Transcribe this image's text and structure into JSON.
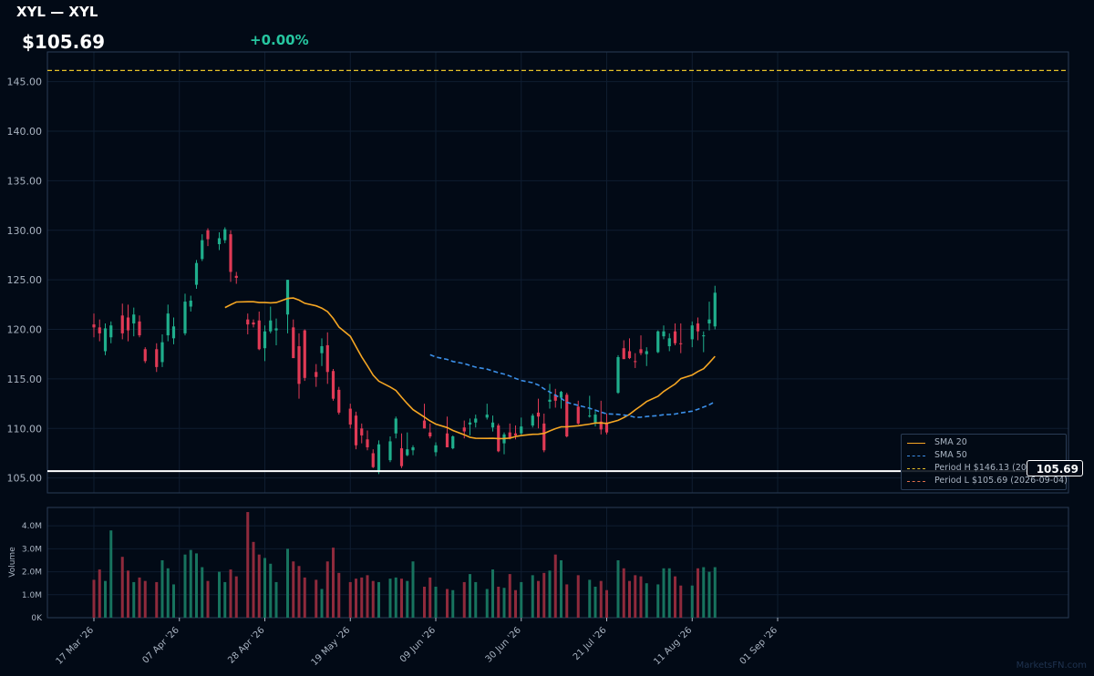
{
  "header": {
    "title": "XYL — XYL",
    "price": "$105.69",
    "change": "+0.00%",
    "change_color": "#26c6a0"
  },
  "watermark": "MarketsFN.com",
  "price_tag": "105.69",
  "colors": {
    "up": "#1fae8c",
    "down": "#e03a55",
    "sma20": "#f5a623",
    "sma50": "#3b8fe8",
    "period_high": "#e6c229",
    "period_low": "#ffffff",
    "grid": "#0f1d30",
    "axis_text": "#a9b4c2"
  },
  "chart_data": {
    "type": "candlestick",
    "title": "XYL — XYL",
    "ylim": [
      103.5,
      148.0
    ],
    "price_ticks": [
      "105.00",
      "110.00",
      "115.00",
      "120.00",
      "125.00",
      "130.00",
      "135.00",
      "140.00",
      "145.00"
    ],
    "volume_ylim": [
      0,
      4800000
    ],
    "volume_label": "Volume",
    "volume_ticks": [
      {
        "value": 0,
        "label": "0K"
      },
      {
        "value": 1000000,
        "label": "1.0M"
      },
      {
        "value": 2000000,
        "label": "2.0M"
      },
      {
        "value": 3000000,
        "label": "3.0M"
      },
      {
        "value": 4000000,
        "label": "4.0M"
      }
    ],
    "x_ticks": [
      {
        "index": 0,
        "label": "17 Mar '26"
      },
      {
        "index": 15,
        "label": "07 Apr '26"
      },
      {
        "index": 30,
        "label": "28 Apr '26"
      },
      {
        "index": 45,
        "label": "19 May '26"
      },
      {
        "index": 60,
        "label": "09 Jun '26"
      },
      {
        "index": 75,
        "label": "30 Jun '26"
      },
      {
        "index": 90,
        "label": "21 Jul '26"
      },
      {
        "index": 105,
        "label": "11 Aug '26"
      },
      {
        "index": 120,
        "label": "01 Sep '26"
      }
    ],
    "candles": [
      [
        120.5,
        121.6,
        119.2,
        120.2,
        1650000
      ],
      [
        120.2,
        121.0,
        118.8,
        119.6,
        2100000
      ],
      [
        117.8,
        120.6,
        117.4,
        120.1,
        1600000
      ],
      [
        119.2,
        120.8,
        118.6,
        120.4,
        3800000
      ],
      null,
      [
        121.4,
        122.6,
        119.0,
        119.6,
        2650000
      ],
      [
        121.2,
        122.5,
        118.8,
        119.9,
        2050000
      ],
      [
        120.6,
        122.2,
        119.3,
        121.5,
        1550000
      ],
      [
        120.8,
        121.4,
        119.2,
        119.4,
        1750000
      ],
      [
        118.0,
        118.2,
        116.6,
        116.8,
        1600000
      ],
      null,
      [
        118.0,
        118.6,
        115.7,
        116.2,
        1550000
      ],
      [
        116.7,
        119.5,
        116.2,
        118.7,
        2500000
      ],
      [
        119.4,
        122.5,
        118.8,
        121.6,
        2150000
      ],
      [
        119.1,
        121.2,
        118.5,
        120.3,
        1450000
      ],
      null,
      [
        119.6,
        123.6,
        119.4,
        122.8,
        2750000
      ],
      [
        122.3,
        123.4,
        121.8,
        122.9,
        2950000
      ],
      [
        124.5,
        127.0,
        124.1,
        126.7,
        2800000
      ],
      [
        127.1,
        129.6,
        126.9,
        129.0,
        2200000
      ],
      [
        130.0,
        130.2,
        128.4,
        129.1,
        1600000
      ],
      null,
      [
        128.6,
        129.8,
        128.0,
        129.2,
        2000000
      ],
      [
        129.0,
        130.3,
        128.7,
        130.1,
        1550000
      ],
      [
        129.6,
        130.0,
        124.8,
        125.8,
        2100000
      ],
      [
        125.4,
        125.8,
        124.6,
        125.2,
        1800000
      ],
      null,
      [
        121.0,
        121.6,
        119.5,
        120.5,
        4600000
      ],
      [
        120.7,
        121.0,
        120.2,
        120.5,
        3300000
      ],
      [
        120.9,
        121.8,
        117.9,
        118.0,
        2750000
      ],
      [
        118.1,
        120.4,
        116.8,
        119.8,
        2600000
      ],
      [
        119.8,
        122.3,
        119.6,
        120.9,
        2350000
      ],
      [
        119.9,
        121.1,
        118.4,
        120.1,
        1550000
      ],
      null,
      [
        121.5,
        125.0,
        119.6,
        125.0,
        3000000
      ],
      [
        120.2,
        121.0,
        117.1,
        117.1,
        2450000
      ],
      [
        118.3,
        119.6,
        113.0,
        114.5,
        2250000
      ],
      [
        119.9,
        120.0,
        114.8,
        115.1,
        1750000
      ],
      null,
      [
        115.7,
        116.5,
        114.2,
        115.2,
        1650000
      ],
      [
        117.6,
        119.1,
        116.3,
        118.3,
        1250000
      ],
      [
        118.4,
        119.7,
        114.5,
        115.7,
        2450000
      ],
      [
        115.8,
        116.0,
        112.8,
        113.0,
        3050000
      ],
      [
        113.9,
        114.2,
        111.4,
        111.6,
        1950000
      ],
      null,
      [
        112.0,
        112.5,
        110.0,
        110.4,
        1550000
      ],
      [
        111.3,
        111.7,
        107.9,
        108.3,
        1700000
      ],
      [
        110.0,
        110.5,
        108.5,
        109.3,
        1750000
      ],
      [
        108.9,
        109.8,
        107.8,
        108.1,
        1850000
      ],
      [
        107.5,
        107.9,
        106.0,
        106.1,
        1600000
      ],
      [
        105.6,
        108.8,
        105.4,
        108.4,
        1550000
      ],
      null,
      [
        106.8,
        109.2,
        106.6,
        108.7,
        1700000
      ],
      [
        109.5,
        111.2,
        109.0,
        111.0,
        1750000
      ],
      [
        108.0,
        109.5,
        106.0,
        106.2,
        1700000
      ],
      [
        107.3,
        109.6,
        107.2,
        107.9,
        1600000
      ],
      [
        107.8,
        108.3,
        107.3,
        108.1,
        2450000
      ],
      null,
      [
        110.8,
        112.5,
        110.0,
        110.0,
        1350000
      ],
      [
        109.6,
        110.5,
        109.0,
        109.2,
        1750000
      ],
      [
        107.6,
        108.6,
        107.2,
        108.3,
        1350000
      ],
      null,
      [
        109.5,
        111.2,
        108.1,
        108.1,
        1250000
      ],
      [
        108.0,
        109.3,
        107.9,
        109.2,
        1200000
      ],
      null,
      [
        110.1,
        110.8,
        109.0,
        109.7,
        1550000
      ],
      [
        110.4,
        111.0,
        109.3,
        110.6,
        1900000
      ],
      [
        110.6,
        111.4,
        110.1,
        111.0,
        1550000
      ],
      null,
      [
        111.1,
        112.5,
        110.9,
        111.4,
        1250000
      ],
      [
        110.1,
        111.3,
        109.7,
        110.6,
        2100000
      ],
      [
        110.3,
        110.5,
        107.6,
        107.7,
        1350000
      ],
      [
        108.5,
        109.6,
        107.4,
        109.4,
        1300000
      ],
      [
        109.6,
        110.5,
        108.9,
        109.0,
        1900000
      ],
      [
        109.5,
        110.3,
        108.9,
        109.3,
        1200000
      ],
      [
        109.5,
        111.1,
        109.3,
        110.2,
        1550000
      ],
      null,
      [
        110.3,
        111.5,
        110.1,
        111.3,
        1850000
      ],
      [
        111.6,
        113.0,
        110.0,
        111.2,
        1600000
      ],
      [
        110.5,
        111.5,
        107.6,
        107.8,
        1950000
      ],
      [
        112.7,
        114.5,
        112.0,
        112.9,
        2050000
      ],
      [
        113.4,
        114.0,
        112.1,
        112.8,
        2750000
      ],
      [
        113.1,
        113.8,
        112.0,
        113.7,
        2500000
      ],
      [
        113.4,
        113.6,
        109.1,
        109.2,
        1450000
      ],
      null,
      [
        112.2,
        112.8,
        110.4,
        110.5,
        1850000
      ],
      null,
      [
        111.2,
        113.3,
        111.1,
        111.3,
        1650000
      ],
      [
        110.6,
        111.8,
        110.2,
        111.4,
        1350000
      ],
      [
        110.7,
        112.8,
        109.4,
        109.9,
        1600000
      ],
      [
        110.6,
        111.5,
        109.4,
        109.6,
        1200000
      ],
      null,
      [
        113.6,
        117.4,
        113.5,
        117.2,
        2500000
      ],
      [
        118.1,
        118.9,
        117.0,
        117.0,
        2150000
      ],
      [
        117.8,
        119.1,
        117.0,
        117.1,
        1600000
      ],
      [
        116.8,
        117.6,
        116.1,
        116.7,
        1850000
      ],
      [
        118.0,
        119.4,
        117.4,
        117.6,
        1800000
      ],
      [
        117.5,
        118.2,
        116.3,
        117.8,
        1500000
      ],
      null,
      [
        117.7,
        119.9,
        117.6,
        119.8,
        1450000
      ],
      [
        119.3,
        120.4,
        119.0,
        119.8,
        2150000
      ],
      [
        118.3,
        119.6,
        117.8,
        119.1,
        2150000
      ],
      [
        119.8,
        120.6,
        118.4,
        118.6,
        1800000
      ],
      [
        118.6,
        120.6,
        117.6,
        118.5,
        1400000
      ],
      null,
      [
        119.0,
        120.8,
        118.2,
        120.4,
        1400000
      ],
      [
        120.6,
        121.2,
        118.9,
        119.8,
        2150000
      ],
      [
        119.3,
        119.8,
        117.7,
        119.4,
        2200000
      ],
      [
        120.6,
        122.8,
        119.9,
        121.0,
        2000000
      ],
      [
        120.3,
        124.4,
        120.0,
        123.7,
        2200000
      ]
    ],
    "sma20": [],
    "sma50": [],
    "period_high": {
      "value": 146.13,
      "label": "Period H $146.13 (2026-01-16)"
    },
    "period_low": {
      "value": 105.69,
      "label": "Period L $105.69 (2026-09-04)"
    },
    "legend": [
      "SMA 20",
      "SMA 50",
      "Period H $146.13 (2026-01-16)",
      "Period L $105.69 (2026-09-04)"
    ],
    "legend_position": "bottom-right"
  }
}
